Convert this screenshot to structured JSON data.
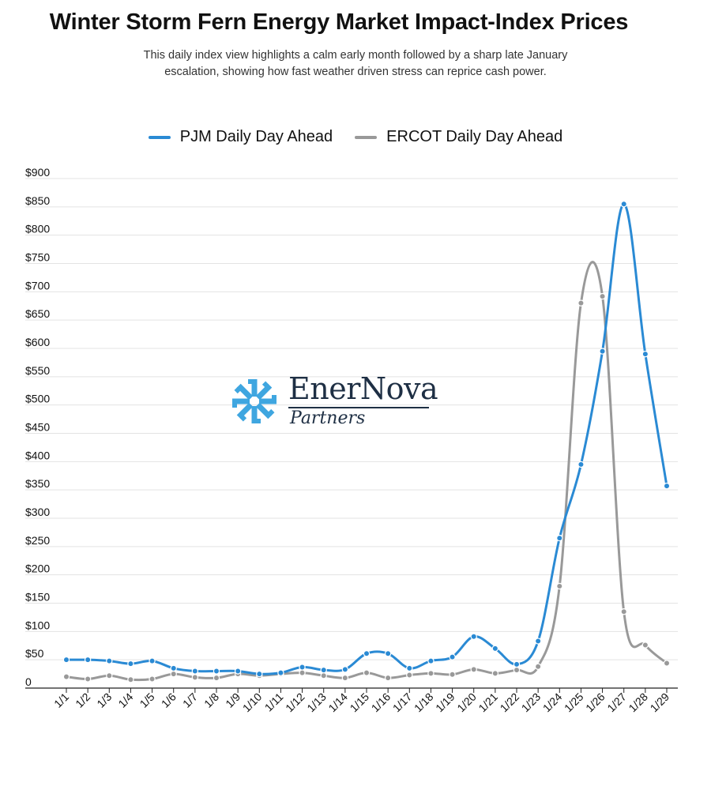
{
  "chart_data": {
    "type": "line",
    "title": "Winter Storm Fern Energy Market Impact-Index Prices",
    "subtitle": "This daily index view highlights a calm early month followed by a sharp late January escalation, showing how fast weather driven stress can reprice cash power.",
    "categories": [
      "1/1",
      "1/2",
      "1/3",
      "1/4",
      "1/5",
      "1/6",
      "1/7",
      "1/8",
      "1/9",
      "1/10",
      "1/11",
      "1/12",
      "1/13",
      "1/14",
      "1/15",
      "1/16",
      "1/17",
      "1/18",
      "1/19",
      "1/20",
      "1/21",
      "1/22",
      "1/23",
      "1/24",
      "1/25",
      "1/26",
      "1/27",
      "1/28",
      "1/29"
    ],
    "y_ticks": [
      "0",
      "$50",
      "$100",
      "$150",
      "$200",
      "$250",
      "$300",
      "$350",
      "$400",
      "$450",
      "$500",
      "$550",
      "$600",
      "$650",
      "$700",
      "$750",
      "$800",
      "$850",
      "$900"
    ],
    "ylim": [
      0,
      900
    ],
    "grid": true,
    "legend_position": "top-center",
    "series": [
      {
        "name": "PJM Daily Day Ahead",
        "color": "#2a8ad4",
        "values": [
          50,
          50,
          48,
          43,
          48,
          35,
          30,
          30,
          30,
          25,
          27,
          37,
          32,
          33,
          61,
          61,
          35,
          48,
          55,
          91,
          70,
          42,
          83,
          265,
          395,
          595,
          855,
          590,
          357
        ]
      },
      {
        "name": "ERCOT Daily Day Ahead",
        "color": "#999999",
        "values": [
          20,
          16,
          22,
          15,
          16,
          25,
          19,
          18,
          25,
          22,
          25,
          27,
          22,
          18,
          27,
          18,
          23,
          26,
          24,
          33,
          26,
          32,
          38,
          180,
          680,
          692,
          135,
          76,
          44
        ]
      }
    ]
  },
  "logo": {
    "name": "EnerNova",
    "sub": "Partners",
    "icon": "asterisk-burst-icon",
    "color": "#3fa6e0"
  }
}
